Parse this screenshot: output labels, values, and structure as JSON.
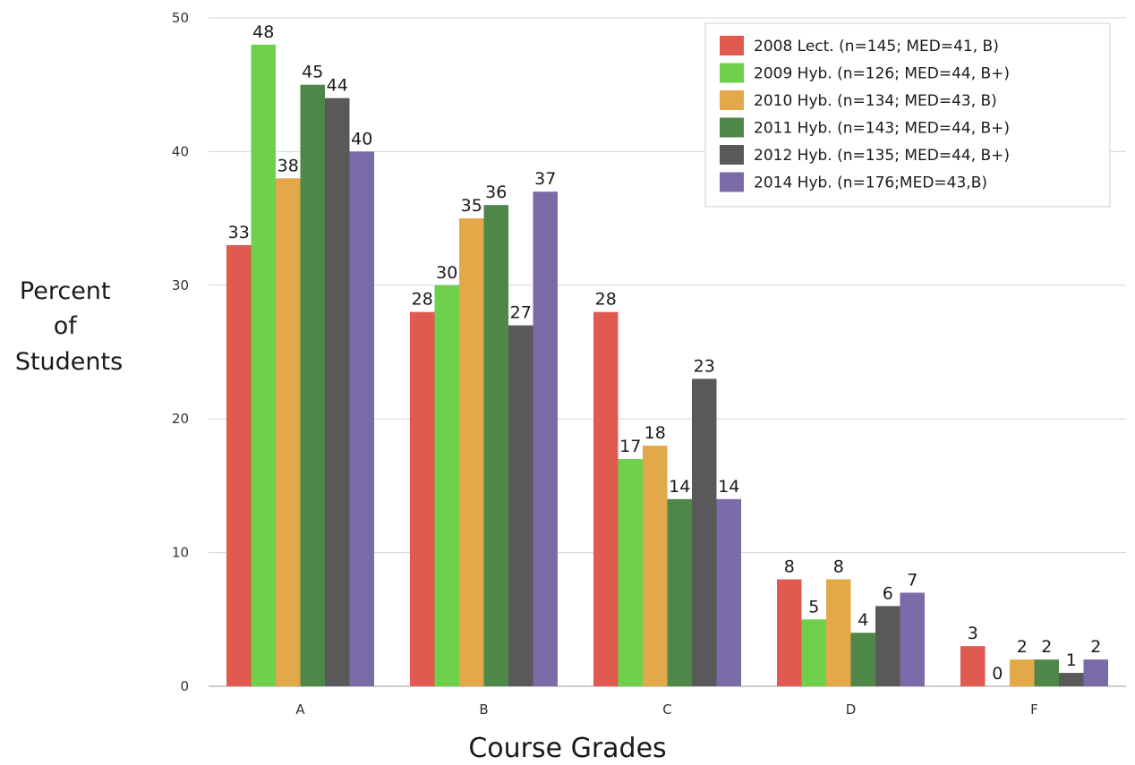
{
  "chart_data": {
    "type": "bar",
    "categories": [
      "A",
      "B",
      "C",
      "D",
      "F"
    ],
    "series": [
      {
        "name": "2008 Lect. (n=145; MED=41, B)",
        "color": "#e05a4f",
        "values": [
          33,
          28,
          28,
          8,
          3
        ]
      },
      {
        "name": "2009 Hyb. (n=126; MED=44, B+)",
        "color": "#6fd04b",
        "values": [
          48,
          30,
          17,
          5,
          0
        ]
      },
      {
        "name": "2010 Hyb. (n=134; MED=43, B)",
        "color": "#e3a849",
        "values": [
          38,
          35,
          18,
          8,
          2
        ]
      },
      {
        "name": "2011 Hyb. (n=143; MED=44, B+)",
        "color": "#4e8748",
        "values": [
          45,
          36,
          14,
          4,
          2
        ]
      },
      {
        "name": "2012 Hyb. (n=135; MED=44, B+)",
        "color": "#595959",
        "values": [
          44,
          27,
          23,
          6,
          1
        ]
      },
      {
        "name": "2014 Hyb. (n=176;MED=43,B)",
        "color": "#7a6aa8",
        "values": [
          40,
          37,
          14,
          7,
          2
        ]
      }
    ],
    "yticks": [
      0,
      10,
      20,
      30,
      40,
      50
    ],
    "ylim": [
      0,
      50
    ],
    "xlabel": "Course Grades",
    "ylabel_lines": [
      "Percent",
      "of",
      "Students"
    ],
    "grid": true,
    "legend_position": "top-right"
  }
}
